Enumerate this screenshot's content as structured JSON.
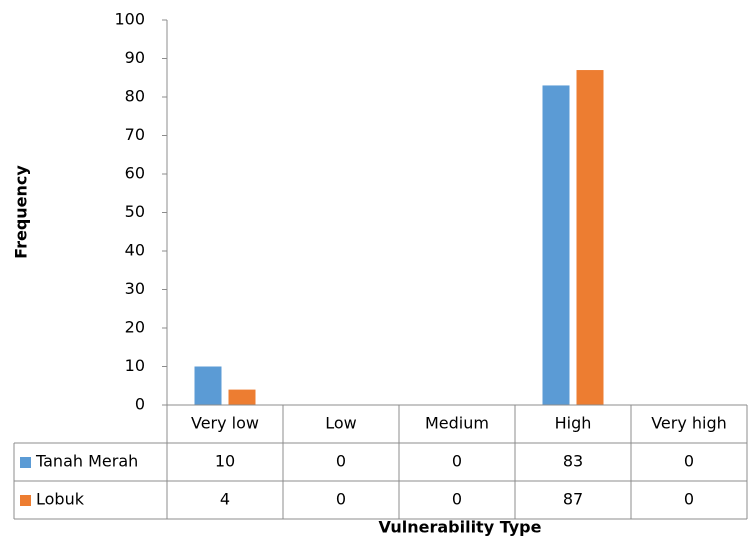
{
  "chart_data": {
    "type": "bar",
    "x_label": "Vulnerability Type",
    "y_label": "Frequency",
    "categories": [
      "Very low",
      "Low",
      "Medium",
      "High",
      "Very high"
    ],
    "series": [
      {
        "name": "Tanah Merah",
        "color": "#5b9bd5",
        "values": [
          10,
          0,
          0,
          83,
          0
        ]
      },
      {
        "name": "Lobuk",
        "color": "#ed7d31",
        "values": [
          4,
          0,
          0,
          87,
          0
        ]
      }
    ],
    "ylim": [
      0,
      100
    ],
    "yticks": [
      0,
      10,
      20,
      30,
      40,
      50,
      60,
      70,
      80,
      90,
      100
    ],
    "data_table": true
  }
}
